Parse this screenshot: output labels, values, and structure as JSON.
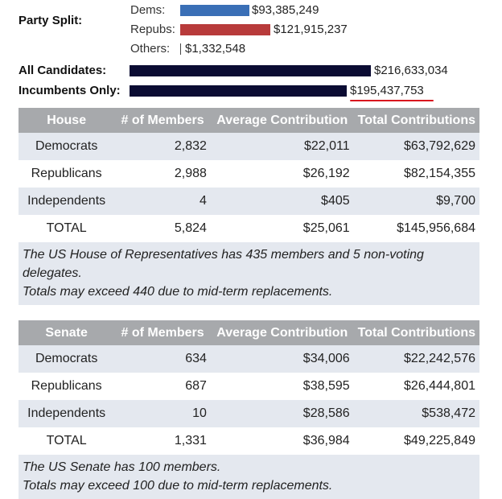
{
  "party_split": {
    "label": "Party Split:",
    "rows": [
      {
        "party": "Dems:",
        "amount": "$93,385,249",
        "color": "#3a6fb6"
      },
      {
        "party": "Repubs:",
        "amount": "$121,915,237",
        "color": "#b83b3b"
      },
      {
        "party": "Others:",
        "amount": "$1,332,548",
        "color": "#444444"
      }
    ]
  },
  "totals": {
    "all_label": "All Candidates:",
    "all_amount": "$216,633,034",
    "incumbents_label": "Incumbents Only:",
    "incumbents_amount": "$195,437,753",
    "bar_color": "#0b0c33",
    "highlight_color": "#d9161e"
  },
  "house": {
    "headers": [
      "House",
      "# of Members",
      "Average Contribution",
      "Total Contributions"
    ],
    "rows": [
      [
        "Democrats",
        "2,832",
        "$22,011",
        "$63,792,629"
      ],
      [
        "Republicans",
        "2,988",
        "$26,192",
        "$82,154,355"
      ],
      [
        "Independents",
        "4",
        "$405",
        "$9,700"
      ],
      [
        "TOTAL",
        "5,824",
        "$25,061",
        "$145,956,684"
      ]
    ],
    "note_line1": "The US House of Representatives has 435 members and 5 non-voting delegates.",
    "note_line2": "Totals may exceed 440 due to mid-term replacements."
  },
  "senate": {
    "headers": [
      "Senate",
      "# of Members",
      "Average Contribution",
      "Total Contributions"
    ],
    "rows": [
      [
        "Democrats",
        "634",
        "$34,006",
        "$22,242,576"
      ],
      [
        "Republicans",
        "687",
        "$38,595",
        "$26,444,801"
      ],
      [
        "Independents",
        "10",
        "$28,586",
        "$538,472"
      ],
      [
        "TOTAL",
        "1,331",
        "$36,984",
        "$49,225,849"
      ]
    ],
    "note_line1": "The US Senate has 100 members.",
    "note_line2": "Totals may exceed 100 due to mid-term replacements."
  }
}
